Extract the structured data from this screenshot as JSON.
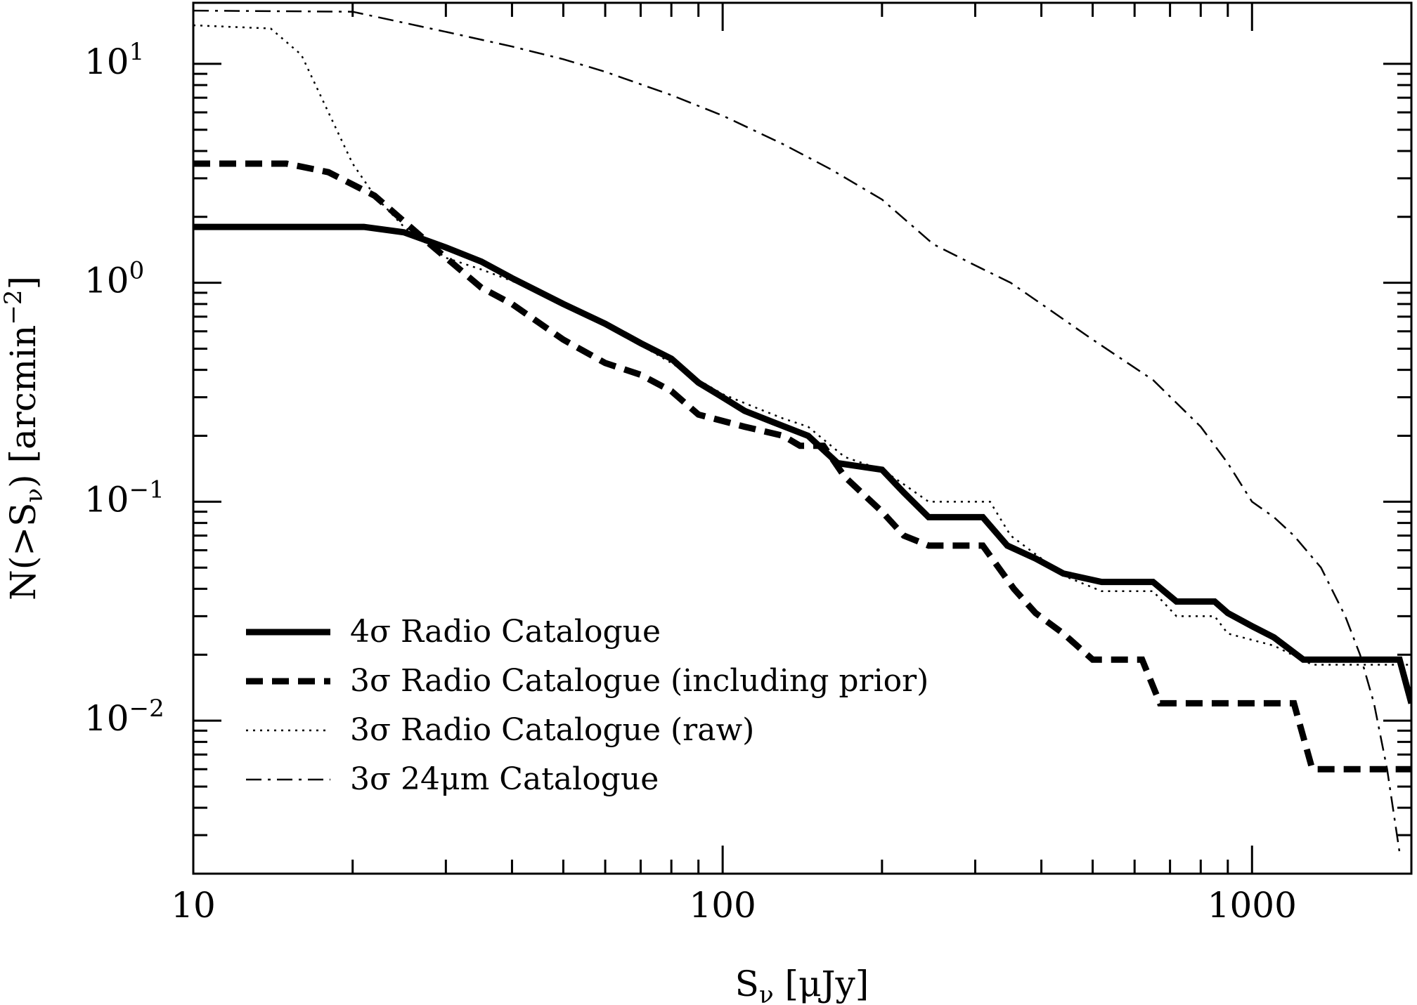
{
  "chart_data": {
    "type": "line",
    "xscale": "log",
    "yscale": "log",
    "xlim": [
      10,
      2000
    ],
    "ylim": [
      0.002,
      19
    ],
    "xlabel": {
      "main": "S",
      "sub": "ν",
      "rest": " [μJy]"
    },
    "ylabel": {
      "main": "N(>S",
      "sub": "ν",
      "rest": ")  [arcmin",
      "sup": "−2",
      "end": "]"
    },
    "x_ticks": [
      {
        "value": 10,
        "label": "10"
      },
      {
        "value": 100,
        "label": "100"
      },
      {
        "value": 1000,
        "label": "1000"
      }
    ],
    "y_ticks": [
      {
        "value": 10,
        "base": "10",
        "exp": "1"
      },
      {
        "value": 1,
        "base": "10",
        "exp": "0"
      },
      {
        "value": 0.1,
        "base": "10",
        "exp": "−1"
      },
      {
        "value": 0.01,
        "base": "10",
        "exp": "−2"
      }
    ],
    "grid": false,
    "legend_position": "bottom-left",
    "series": [
      {
        "name": "4σ Radio Catalogue",
        "style": "solid-thick",
        "points": [
          [
            10,
            1.8
          ],
          [
            21,
            1.8
          ],
          [
            25,
            1.7
          ],
          [
            30,
            1.45
          ],
          [
            35,
            1.25
          ],
          [
            40,
            1.05
          ],
          [
            50,
            0.8
          ],
          [
            60,
            0.65
          ],
          [
            70,
            0.53
          ],
          [
            80,
            0.45
          ],
          [
            90,
            0.35
          ],
          [
            100,
            0.3
          ],
          [
            110,
            0.26
          ],
          [
            125,
            0.23
          ],
          [
            145,
            0.2
          ],
          [
            165,
            0.15
          ],
          [
            200,
            0.14
          ],
          [
            220,
            0.11
          ],
          [
            245,
            0.085
          ],
          [
            310,
            0.085
          ],
          [
            345,
            0.063
          ],
          [
            390,
            0.055
          ],
          [
            440,
            0.047
          ],
          [
            520,
            0.043
          ],
          [
            650,
            0.043
          ],
          [
            720,
            0.035
          ],
          [
            850,
            0.035
          ],
          [
            900,
            0.031
          ],
          [
            1000,
            0.027
          ],
          [
            1100,
            0.024
          ],
          [
            1250,
            0.019
          ],
          [
            1900,
            0.019
          ],
          [
            2000,
            0.012
          ]
        ]
      },
      {
        "name": "3σ Radio Catalogue (including prior)",
        "style": "dashed-thick",
        "points": [
          [
            10,
            3.5
          ],
          [
            15,
            3.5
          ],
          [
            18,
            3.2
          ],
          [
            22,
            2.5
          ],
          [
            28,
            1.5
          ],
          [
            35,
            0.95
          ],
          [
            40,
            0.8
          ],
          [
            50,
            0.55
          ],
          [
            60,
            0.43
          ],
          [
            70,
            0.38
          ],
          [
            80,
            0.32
          ],
          [
            90,
            0.25
          ],
          [
            110,
            0.22
          ],
          [
            130,
            0.2
          ],
          [
            140,
            0.18
          ],
          [
            155,
            0.18
          ],
          [
            170,
            0.13
          ],
          [
            200,
            0.09
          ],
          [
            220,
            0.07
          ],
          [
            245,
            0.063
          ],
          [
            310,
            0.063
          ],
          [
            355,
            0.04
          ],
          [
            390,
            0.031
          ],
          [
            440,
            0.025
          ],
          [
            500,
            0.019
          ],
          [
            620,
            0.019
          ],
          [
            670,
            0.012
          ],
          [
            1200,
            0.012
          ],
          [
            1300,
            0.006
          ],
          [
            2000,
            0.006
          ]
        ]
      },
      {
        "name": "3σ Radio Catalogue (raw)",
        "style": "dotted",
        "points": [
          [
            10,
            15
          ],
          [
            14,
            14.5
          ],
          [
            16,
            11
          ],
          [
            18,
            6
          ],
          [
            20,
            3.5
          ],
          [
            22,
            2.5
          ],
          [
            25,
            1.8
          ],
          [
            30,
            1.3
          ],
          [
            35,
            1.15
          ],
          [
            40,
            1.02
          ],
          [
            50,
            0.8
          ],
          [
            60,
            0.65
          ],
          [
            70,
            0.52
          ],
          [
            80,
            0.43
          ],
          [
            90,
            0.36
          ],
          [
            100,
            0.31
          ],
          [
            115,
            0.27
          ],
          [
            130,
            0.24
          ],
          [
            145,
            0.22
          ],
          [
            170,
            0.16
          ],
          [
            200,
            0.14
          ],
          [
            220,
            0.12
          ],
          [
            245,
            0.1
          ],
          [
            320,
            0.1
          ],
          [
            350,
            0.07
          ],
          [
            400,
            0.055
          ],
          [
            450,
            0.045
          ],
          [
            520,
            0.039
          ],
          [
            650,
            0.039
          ],
          [
            720,
            0.03
          ],
          [
            850,
            0.03
          ],
          [
            900,
            0.025
          ],
          [
            1100,
            0.022
          ],
          [
            1300,
            0.018
          ],
          [
            2000,
            0.018
          ]
        ]
      },
      {
        "name": "3σ 24μm Catalogue",
        "style": "dash-dot",
        "points": [
          [
            10,
            17.5
          ],
          [
            20,
            17.3
          ],
          [
            30,
            14
          ],
          [
            40,
            12
          ],
          [
            50,
            10.5
          ],
          [
            60,
            9.2
          ],
          [
            80,
            7.2
          ],
          [
            100,
            5.8
          ],
          [
            130,
            4.3
          ],
          [
            160,
            3.3
          ],
          [
            200,
            2.4
          ],
          [
            250,
            1.5
          ],
          [
            300,
            1.2
          ],
          [
            350,
            1.0
          ],
          [
            400,
            0.8
          ],
          [
            500,
            0.55
          ],
          [
            650,
            0.36
          ],
          [
            800,
            0.22
          ],
          [
            900,
            0.15
          ],
          [
            1000,
            0.1
          ],
          [
            1100,
            0.085
          ],
          [
            1200,
            0.07
          ],
          [
            1350,
            0.05
          ],
          [
            1500,
            0.03
          ],
          [
            1600,
            0.02
          ],
          [
            1700,
            0.012
          ],
          [
            1800,
            0.006
          ],
          [
            1900,
            0.0025
          ]
        ]
      }
    ]
  }
}
